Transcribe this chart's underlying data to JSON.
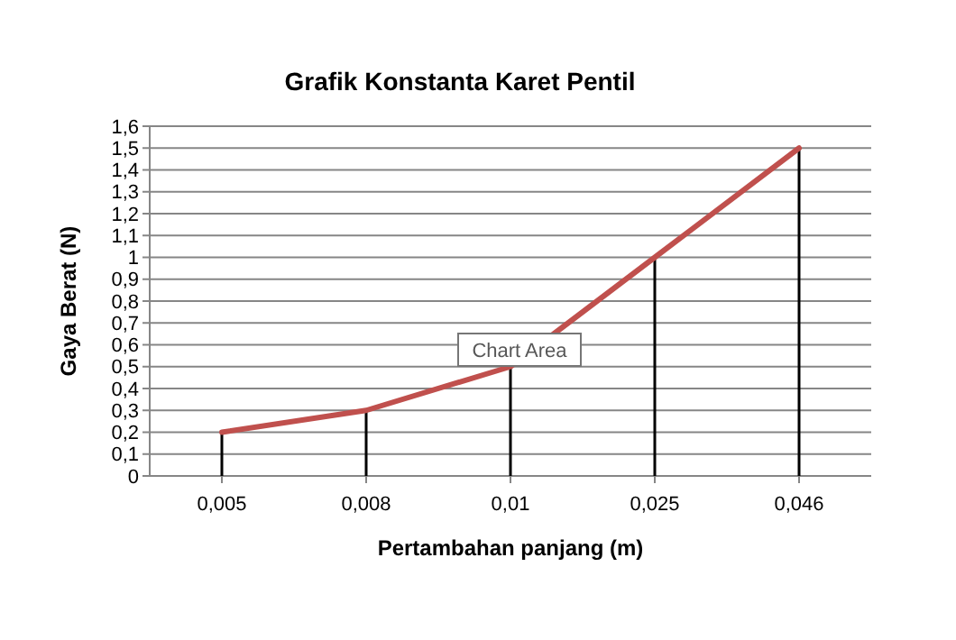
{
  "chart_data": {
    "type": "line",
    "title": "Grafik Konstanta Karet Pentil",
    "xlabel": "Pertambahan panjang (m)",
    "ylabel": "Gaya Berat (N)",
    "categories": [
      "0,005",
      "0,008",
      "0,01",
      "0,025",
      "0,046"
    ],
    "series": [
      {
        "type": "bar",
        "color": "#000000",
        "values": [
          0.2,
          0.3,
          0.5,
          1.0,
          1.5
        ]
      },
      {
        "color": "#c0504d",
        "values": [
          0.2,
          0.3,
          0.5,
          1.0,
          1.5
        ]
      }
    ],
    "ylim": [
      0,
      1.6
    ],
    "yticks": [
      0,
      {
        "value": 0.1,
        "label": "0,1"
      },
      {
        "value": 0.2,
        "label": "0,2"
      },
      {
        "value": 0.3,
        "label": "0,3"
      },
      {
        "value": 0.4,
        "label": "0,4"
      },
      {
        "value": 0.5,
        "label": "0,5"
      },
      {
        "value": 0.6,
        "label": "0,6"
      },
      {
        "value": 0.7,
        "label": "0,7"
      },
      {
        "value": 0.8,
        "label": "0,8"
      },
      {
        "value": 0.9,
        "label": "0,9"
      },
      1,
      {
        "value": 1.1,
        "label": "1,1"
      },
      {
        "value": 1.2,
        "label": "1,2"
      },
      {
        "value": 1.3,
        "label": "1,3"
      },
      {
        "value": 1.4,
        "label": "1,4"
      },
      {
        "value": 1.5,
        "label": "1,5"
      },
      {
        "value": 1.6,
        "label": "1,6"
      }
    ],
    "grid": "y",
    "marker": "none",
    "line_style": "solid",
    "annotations": [
      "Chart Area"
    ]
  }
}
